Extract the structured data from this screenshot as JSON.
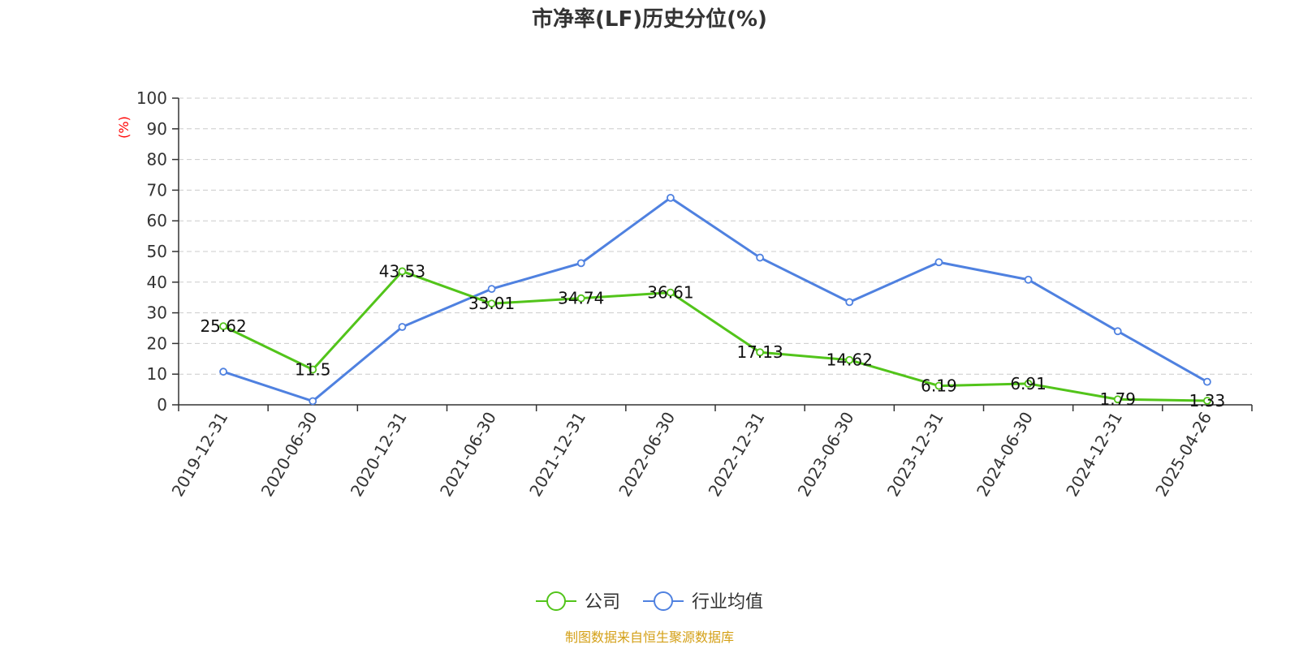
{
  "chart_data": {
    "type": "line",
    "title": "市净率(LF)历史分位(%)",
    "ylabel": "(%)",
    "xlabel": "",
    "categories": [
      "2019-12-31",
      "2020-06-30",
      "2020-12-31",
      "2021-06-30",
      "2021-12-31",
      "2022-06-30",
      "2022-12-31",
      "2023-06-30",
      "2023-12-31",
      "2024-06-30",
      "2024-12-31",
      "2025-04-26"
    ],
    "ylim": [
      0,
      100
    ],
    "yticks": [
      0,
      10,
      20,
      30,
      40,
      50,
      60,
      70,
      80,
      90,
      100
    ],
    "grid": true,
    "legend_position": "bottom",
    "series": [
      {
        "name": "公司",
        "color": "#52c41a",
        "values": [
          25.62,
          11.5,
          43.53,
          33.01,
          34.74,
          36.61,
          17.13,
          14.62,
          6.19,
          6.91,
          1.79,
          1.33
        ],
        "labels": [
          "25.62",
          "11.5",
          "43.53",
          "33.01",
          "34.74",
          "36.61",
          "17.13",
          "14.62",
          "6.19",
          "6.91",
          "1.79",
          "1.33"
        ]
      },
      {
        "name": "行业均值",
        "color": "#4f81e0",
        "values": [
          10.8,
          1.2,
          25.4,
          37.8,
          46.2,
          67.5,
          48.0,
          33.5,
          46.5,
          40.8,
          24.0,
          7.5
        ]
      }
    ],
    "source": "制图数据来自恒生聚源数据库"
  }
}
